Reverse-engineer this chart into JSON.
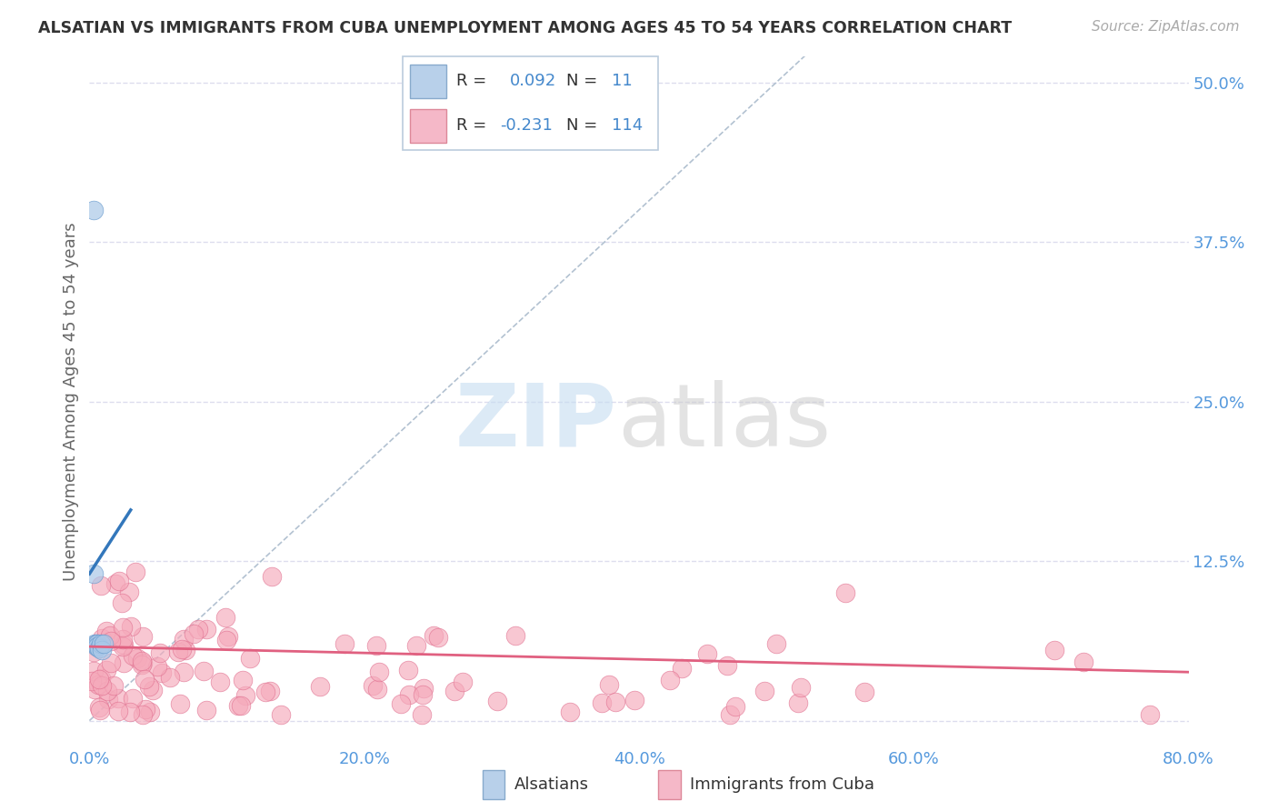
{
  "title": "ALSATIAN VS IMMIGRANTS FROM CUBA UNEMPLOYMENT AMONG AGES 45 TO 54 YEARS CORRELATION CHART",
  "source": "Source: ZipAtlas.com",
  "ylabel": "Unemployment Among Ages 45 to 54 years",
  "xlim": [
    0.0,
    0.8
  ],
  "ylim": [
    -0.02,
    0.52
  ],
  "xticks": [
    0.0,
    0.2,
    0.4,
    0.6,
    0.8
  ],
  "xticklabels": [
    "0.0%",
    "20.0%",
    "40.0%",
    "60.0%",
    "80.0%"
  ],
  "yticks": [
    0.0,
    0.125,
    0.25,
    0.375,
    0.5
  ],
  "yticklabels": [
    "",
    "12.5%",
    "25.0%",
    "37.5%",
    "50.0%"
  ],
  "blue_scatter_color": "#aac8e8",
  "blue_scatter_edge": "#6699cc",
  "pink_scatter_color": "#f5aabb",
  "pink_scatter_edge": "#e07090",
  "blue_line_color": "#3377bb",
  "pink_line_color": "#e06080",
  "diag_line_color": "#aabbcc",
  "grid_color": "#ddddee",
  "tick_label_color": "#5599dd",
  "axis_label_color": "#666666",
  "title_color": "#333333",
  "source_color": "#aaaaaa",
  "legend_box_color": "#ddddee",
  "watermark_zip_color": "#c8dff5",
  "watermark_atlas_color": "#cccccc",
  "als_x": [
    0.003,
    0.003,
    0.004,
    0.005,
    0.005,
    0.006,
    0.006,
    0.007,
    0.008,
    0.009,
    0.01
  ],
  "als_y": [
    0.4,
    0.115,
    0.06,
    0.06,
    0.058,
    0.06,
    0.058,
    0.057,
    0.06,
    0.055,
    0.06
  ],
  "als_line_x0": 0.0,
  "als_line_y0": 0.115,
  "als_line_x1": 0.03,
  "als_line_y1": 0.165,
  "pink_line_y0": 0.058,
  "pink_line_y1": 0.038,
  "cuba_seed": 42
}
